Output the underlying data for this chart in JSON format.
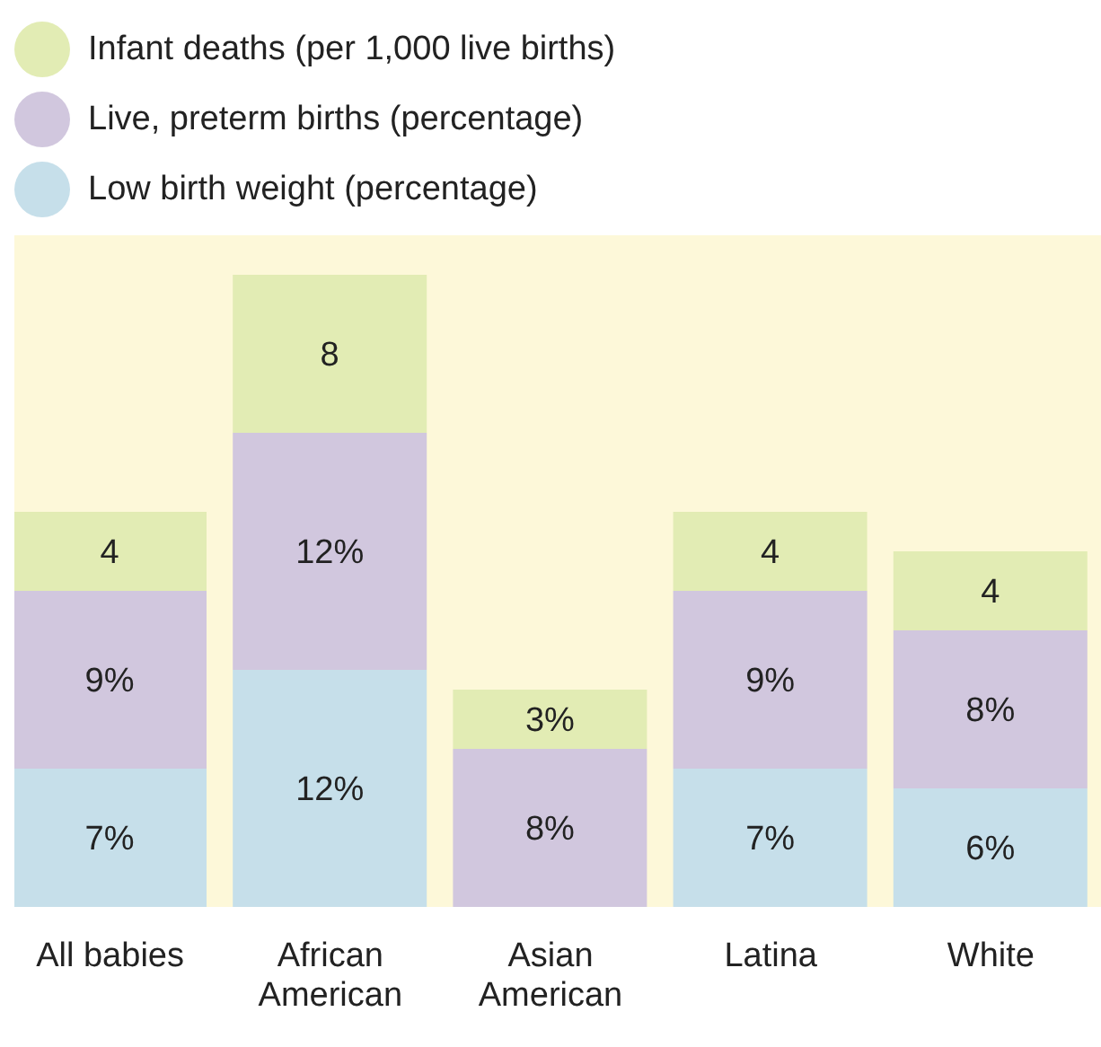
{
  "chart_data": {
    "type": "bar",
    "stacked": true,
    "categories": [
      "All babies",
      "African American",
      "Asian American",
      "Latina",
      "White"
    ],
    "series": [
      {
        "name": "Low birth weight (percentage)",
        "color": "#c6dfea",
        "values": [
          7,
          12,
          null,
          7,
          6
        ],
        "value_labels": [
          "7%",
          "12%",
          null,
          "7%",
          "6%"
        ]
      },
      {
        "name": "Live, preterm births (percentage)",
        "color": "#d1c7de",
        "values": [
          9,
          12,
          8,
          9,
          8
        ],
        "value_labels": [
          "9%",
          "12%",
          "8%",
          "9%",
          "8%"
        ]
      },
      {
        "name": "Infant deaths (per 1,000 live births)",
        "color": "#e2ecb4",
        "values": [
          4,
          8,
          3,
          4,
          4
        ],
        "value_labels": [
          "4",
          "8",
          "3%",
          "4",
          "4"
        ]
      }
    ],
    "ylim": [
      0,
      34
    ],
    "tick_labels": "x",
    "legend": "top left"
  }
}
